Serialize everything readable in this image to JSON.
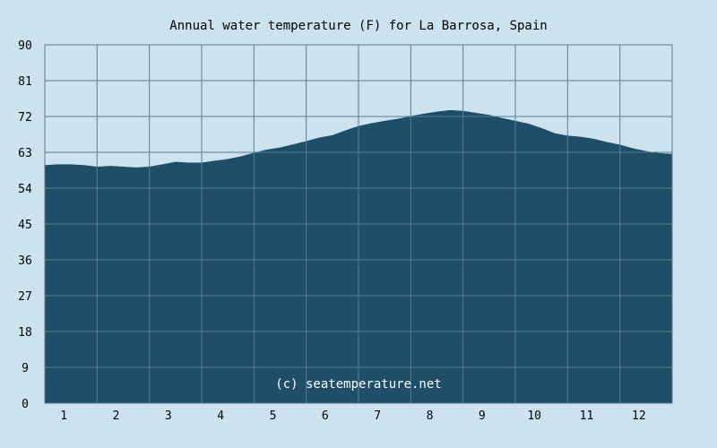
{
  "chart_data": {
    "type": "area",
    "title": "Annual water temperature (F) for La Barrosa, Spain",
    "xlabel": "",
    "ylabel": "",
    "categories": [
      "1",
      "2",
      "3",
      "4",
      "5",
      "6",
      "7",
      "8",
      "9",
      "10",
      "11",
      "12"
    ],
    "yticks": [
      "0",
      "9",
      "18",
      "27",
      "36",
      "45",
      "54",
      "63",
      "72",
      "81",
      "90"
    ],
    "ylim": [
      0,
      90
    ],
    "xlim": [
      0.5,
      12.5
    ],
    "grid": true,
    "series": [
      {
        "x": [
          0.5,
          0.75,
          1.0,
          1.25,
          1.5,
          1.75,
          2.0,
          2.25,
          2.5,
          2.75,
          3.0,
          3.25,
          3.5,
          3.75,
          4.0,
          4.25,
          4.5,
          4.75,
          5.0,
          5.25,
          5.5,
          5.75,
          6.0,
          6.25,
          6.5,
          6.75,
          7.0,
          7.25,
          7.5,
          7.75,
          8.0,
          8.25,
          8.5,
          8.75,
          9.0,
          9.25,
          9.5,
          9.75,
          10.0,
          10.25,
          10.5,
          10.75,
          11.0,
          11.25,
          11.5,
          11.75,
          12.0,
          12.25,
          12.5
        ],
        "values": [
          59.8,
          60.0,
          60.0,
          59.8,
          59.4,
          59.6,
          59.4,
          59.2,
          59.4,
          60.0,
          60.6,
          60.4,
          60.4,
          60.9,
          61.3,
          62.0,
          62.9,
          63.7,
          64.2,
          65.0,
          65.8,
          66.7,
          67.3,
          68.5,
          69.6,
          70.3,
          70.9,
          71.4,
          72.1,
          72.7,
          73.2,
          73.6,
          73.4,
          72.9,
          72.4,
          71.6,
          70.9,
          70.2,
          69.1,
          67.8,
          67.2,
          66.9,
          66.4,
          65.6,
          64.9,
          64.0,
          63.3,
          62.8,
          62.6
        ]
      }
    ],
    "colors": {
      "background": "#cce3ef",
      "area": "#1f4e68",
      "grid": "#5a7d94",
      "axis_text": "#000000",
      "credit_text": "#ffffff"
    },
    "credit": "(c) seatemperature.net"
  }
}
